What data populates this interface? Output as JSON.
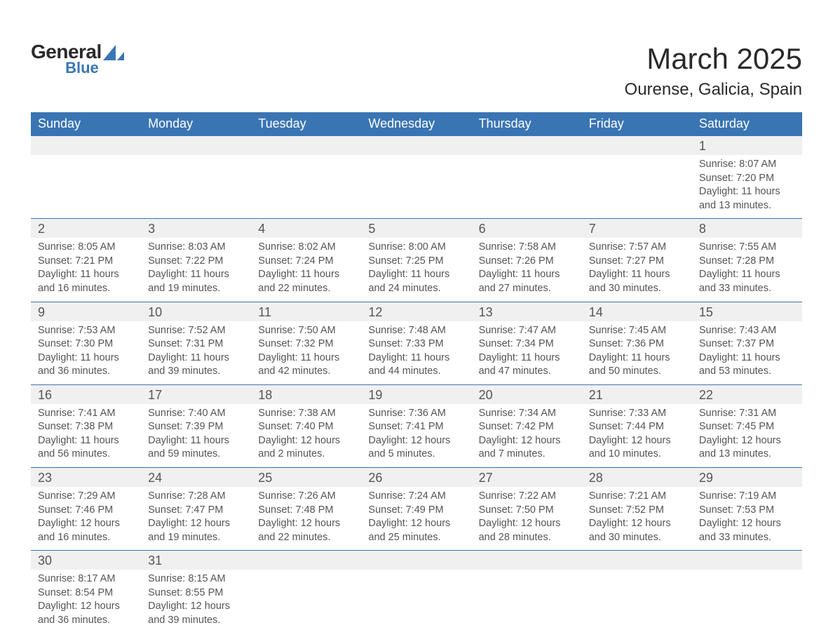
{
  "logo": {
    "general": "General",
    "blue": "Blue",
    "shape_color": "#3a75b3"
  },
  "title": "March 2025",
  "location": "Ourense, Galicia, Spain",
  "colors": {
    "header_bg": "#3a75b3",
    "header_text": "#ffffff",
    "daynum_bg": "#f0f0f0",
    "border": "#3a75b3",
    "body_text": "#555555",
    "title_text": "#2a2a2a",
    "page_bg": "#ffffff"
  },
  "day_headers": [
    "Sunday",
    "Monday",
    "Tuesday",
    "Wednesday",
    "Thursday",
    "Friday",
    "Saturday"
  ],
  "labels": {
    "sunrise": "Sunrise: ",
    "sunset": "Sunset: ",
    "daylight": "Daylight: "
  },
  "weeks": [
    [
      null,
      null,
      null,
      null,
      null,
      null,
      {
        "n": "1",
        "sr": "8:07 AM",
        "ss": "7:20 PM",
        "dl": "11 hours and 13 minutes."
      }
    ],
    [
      {
        "n": "2",
        "sr": "8:05 AM",
        "ss": "7:21 PM",
        "dl": "11 hours and 16 minutes."
      },
      {
        "n": "3",
        "sr": "8:03 AM",
        "ss": "7:22 PM",
        "dl": "11 hours and 19 minutes."
      },
      {
        "n": "4",
        "sr": "8:02 AM",
        "ss": "7:24 PM",
        "dl": "11 hours and 22 minutes."
      },
      {
        "n": "5",
        "sr": "8:00 AM",
        "ss": "7:25 PM",
        "dl": "11 hours and 24 minutes."
      },
      {
        "n": "6",
        "sr": "7:58 AM",
        "ss": "7:26 PM",
        "dl": "11 hours and 27 minutes."
      },
      {
        "n": "7",
        "sr": "7:57 AM",
        "ss": "7:27 PM",
        "dl": "11 hours and 30 minutes."
      },
      {
        "n": "8",
        "sr": "7:55 AM",
        "ss": "7:28 PM",
        "dl": "11 hours and 33 minutes."
      }
    ],
    [
      {
        "n": "9",
        "sr": "7:53 AM",
        "ss": "7:30 PM",
        "dl": "11 hours and 36 minutes."
      },
      {
        "n": "10",
        "sr": "7:52 AM",
        "ss": "7:31 PM",
        "dl": "11 hours and 39 minutes."
      },
      {
        "n": "11",
        "sr": "7:50 AM",
        "ss": "7:32 PM",
        "dl": "11 hours and 42 minutes."
      },
      {
        "n": "12",
        "sr": "7:48 AM",
        "ss": "7:33 PM",
        "dl": "11 hours and 44 minutes."
      },
      {
        "n": "13",
        "sr": "7:47 AM",
        "ss": "7:34 PM",
        "dl": "11 hours and 47 minutes."
      },
      {
        "n": "14",
        "sr": "7:45 AM",
        "ss": "7:36 PM",
        "dl": "11 hours and 50 minutes."
      },
      {
        "n": "15",
        "sr": "7:43 AM",
        "ss": "7:37 PM",
        "dl": "11 hours and 53 minutes."
      }
    ],
    [
      {
        "n": "16",
        "sr": "7:41 AM",
        "ss": "7:38 PM",
        "dl": "11 hours and 56 minutes."
      },
      {
        "n": "17",
        "sr": "7:40 AM",
        "ss": "7:39 PM",
        "dl": "11 hours and 59 minutes."
      },
      {
        "n": "18",
        "sr": "7:38 AM",
        "ss": "7:40 PM",
        "dl": "12 hours and 2 minutes."
      },
      {
        "n": "19",
        "sr": "7:36 AM",
        "ss": "7:41 PM",
        "dl": "12 hours and 5 minutes."
      },
      {
        "n": "20",
        "sr": "7:34 AM",
        "ss": "7:42 PM",
        "dl": "12 hours and 7 minutes."
      },
      {
        "n": "21",
        "sr": "7:33 AM",
        "ss": "7:44 PM",
        "dl": "12 hours and 10 minutes."
      },
      {
        "n": "22",
        "sr": "7:31 AM",
        "ss": "7:45 PM",
        "dl": "12 hours and 13 minutes."
      }
    ],
    [
      {
        "n": "23",
        "sr": "7:29 AM",
        "ss": "7:46 PM",
        "dl": "12 hours and 16 minutes."
      },
      {
        "n": "24",
        "sr": "7:28 AM",
        "ss": "7:47 PM",
        "dl": "12 hours and 19 minutes."
      },
      {
        "n": "25",
        "sr": "7:26 AM",
        "ss": "7:48 PM",
        "dl": "12 hours and 22 minutes."
      },
      {
        "n": "26",
        "sr": "7:24 AM",
        "ss": "7:49 PM",
        "dl": "12 hours and 25 minutes."
      },
      {
        "n": "27",
        "sr": "7:22 AM",
        "ss": "7:50 PM",
        "dl": "12 hours and 28 minutes."
      },
      {
        "n": "28",
        "sr": "7:21 AM",
        "ss": "7:52 PM",
        "dl": "12 hours and 30 minutes."
      },
      {
        "n": "29",
        "sr": "7:19 AM",
        "ss": "7:53 PM",
        "dl": "12 hours and 33 minutes."
      }
    ],
    [
      {
        "n": "30",
        "sr": "8:17 AM",
        "ss": "8:54 PM",
        "dl": "12 hours and 36 minutes."
      },
      {
        "n": "31",
        "sr": "8:15 AM",
        "ss": "8:55 PM",
        "dl": "12 hours and 39 minutes."
      },
      null,
      null,
      null,
      null,
      null
    ]
  ]
}
